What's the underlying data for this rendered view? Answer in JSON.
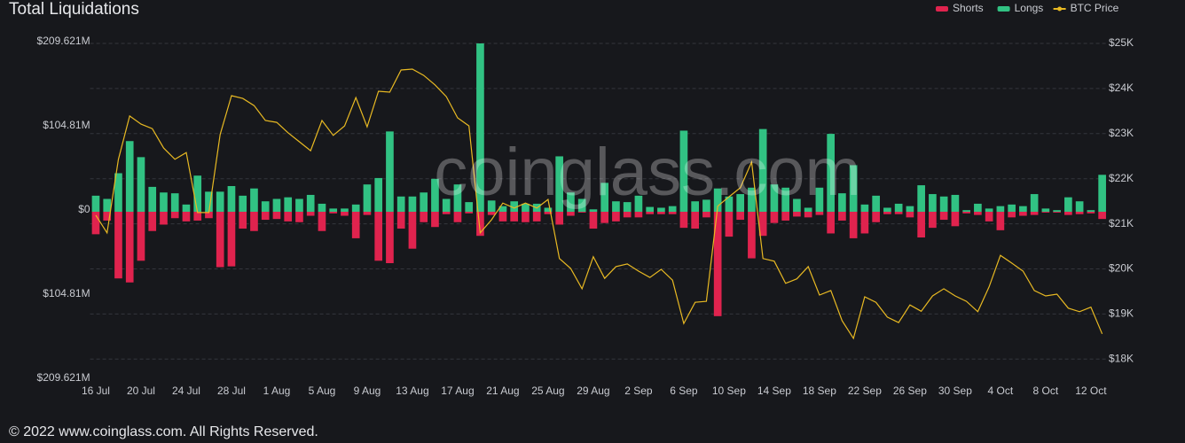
{
  "chart_data": {
    "type": "bar",
    "title": "Total Liquidations",
    "watermark": "coinglass.com",
    "footer": "© 2022 www.coinglass.com. All Rights Reserved.",
    "legend": "top-right",
    "grid": true,
    "categories": [
      "16 Jul",
      null,
      null,
      null,
      "20 Jul",
      null,
      null,
      null,
      "24 Jul",
      null,
      null,
      null,
      "28 Jul",
      null,
      null,
      null,
      "1 Aug",
      null,
      null,
      null,
      "5 Aug",
      null,
      null,
      null,
      "9 Aug",
      null,
      null,
      null,
      "13 Aug",
      null,
      null,
      null,
      "17 Aug",
      null,
      null,
      null,
      "21 Aug",
      null,
      null,
      null,
      "25 Aug",
      null,
      null,
      null,
      "29 Aug",
      null,
      null,
      null,
      "2 Sep",
      null,
      null,
      null,
      "6 Sep",
      null,
      null,
      null,
      "10 Sep",
      null,
      null,
      null,
      "14 Sep",
      null,
      null,
      null,
      "18 Sep",
      null,
      null,
      null,
      "22 Sep",
      null,
      null,
      null,
      "26 Sep",
      null,
      null,
      null,
      "30 Sep",
      null,
      null,
      null,
      "4 Oct",
      null,
      null,
      null,
      "8 Oct",
      null,
      null,
      null,
      "12 Oct",
      null
    ],
    "ylim": [
      -209.621,
      209.621
    ],
    "yticks": [
      {
        "value": 209.621,
        "label": "$209.621M"
      },
      {
        "value": 104.81,
        "label": "$104.81M"
      },
      {
        "value": 0,
        "label": "$0"
      },
      {
        "value": -104.81,
        "label": "$104.81M"
      },
      {
        "value": -209.621,
        "label": "$209.621M"
      }
    ],
    "y2lim": [
      17534,
      25000
    ],
    "y2ticks": [
      {
        "value": 25000,
        "label": "$25K"
      },
      {
        "value": 24000,
        "label": "$24K"
      },
      {
        "value": 23000,
        "label": "$23K"
      },
      {
        "value": 22000,
        "label": "$22K"
      },
      {
        "value": 21000,
        "label": "$21K"
      },
      {
        "value": 20000,
        "label": "$20K"
      },
      {
        "value": 19000,
        "label": "$19K"
      },
      {
        "value": 18000,
        "label": "$18K"
      }
    ],
    "series": [
      {
        "name": "Shorts",
        "type": "bar",
        "color": "#e0234e",
        "values": [
          -28,
          -11,
          -83,
          -88,
          -61,
          -24,
          -16,
          -8,
          -12,
          -11,
          -8,
          -69,
          -68,
          -21,
          -24,
          -10,
          -9,
          -12,
          -13,
          -5,
          -24,
          -2,
          -5,
          -33,
          -4,
          -61,
          -64,
          -21,
          -46,
          -13,
          -19,
          -3,
          -13,
          -2,
          -30,
          -4,
          -12,
          -12,
          -13,
          -12,
          -3,
          -16,
          -5,
          -1,
          -21,
          -14,
          -12,
          -7,
          -7,
          -3,
          -3,
          -3,
          -20,
          -21,
          -7,
          -130,
          -31,
          -10,
          -58,
          -30,
          -14,
          -11,
          -6,
          -7,
          -4,
          -27,
          -11,
          -33,
          -27,
          -13,
          -3,
          -3,
          -7,
          -32,
          -20,
          -10,
          -18,
          -2,
          -4,
          -12,
          -23,
          -7,
          -5,
          -4,
          -1,
          -1,
          -4,
          -3,
          -2,
          -9
        ]
      },
      {
        "name": "Longs",
        "type": "bar",
        "color": "#31c283",
        "values": [
          20,
          16,
          48,
          88,
          68,
          31,
          24,
          23,
          9,
          45,
          25,
          25,
          32,
          20,
          29,
          13,
          16,
          18,
          16,
          21,
          10,
          4,
          4,
          9,
          34,
          42,
          100,
          19,
          19,
          24,
          41,
          16,
          34,
          12,
          209.621,
          14,
          7,
          13,
          10,
          10,
          5,
          69,
          24,
          16,
          3,
          36,
          13,
          12,
          20,
          6,
          5,
          7,
          101,
          13,
          15,
          29,
          19,
          22,
          30,
          103,
          34,
          30,
          16,
          5,
          30,
          97,
          23,
          58,
          9,
          20,
          5,
          10,
          7,
          33,
          22,
          19,
          21,
          2,
          10,
          4,
          7,
          9,
          7,
          22,
          4,
          2,
          18,
          13,
          2,
          46
        ]
      },
      {
        "name": "BTC Price",
        "type": "line",
        "axis": "y2",
        "color": "#e8b923",
        "values": [
          21190,
          20800,
          22430,
          23390,
          23210,
          23110,
          22680,
          22430,
          22580,
          21250,
          21250,
          22980,
          23840,
          23780,
          23620,
          23290,
          23250,
          23020,
          22820,
          22620,
          23290,
          22960,
          23170,
          23800,
          23150,
          23940,
          23920,
          24410,
          24430,
          24290,
          24080,
          23820,
          23350,
          23170,
          20800,
          21090,
          21460,
          21350,
          21460,
          21350,
          21540,
          20230,
          20010,
          19560,
          20270,
          19790,
          20050,
          20110,
          19950,
          19810,
          19990,
          19750,
          18790,
          19260,
          19280,
          21390,
          21600,
          21800,
          22370,
          20230,
          20170,
          19680,
          19780,
          20050,
          19420,
          19520,
          18850,
          18460,
          19380,
          19260,
          18930,
          18810,
          19200,
          19060,
          19400,
          19560,
          19400,
          19280,
          19050,
          19600,
          20300,
          20130,
          19950,
          19520,
          19400,
          19440,
          19130,
          19050,
          19150,
          18560
        ]
      }
    ]
  }
}
